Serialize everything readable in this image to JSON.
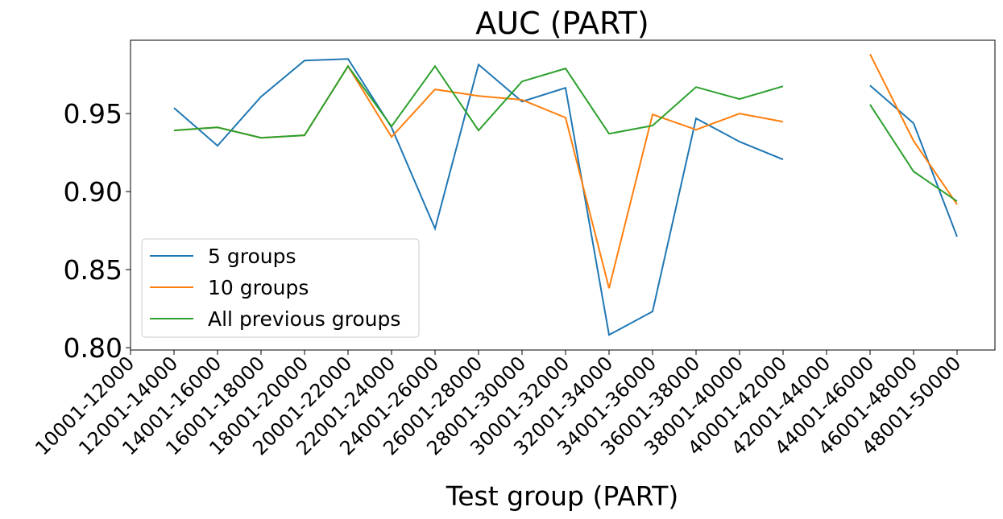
{
  "chart_data": {
    "type": "line",
    "title": "AUC (PART)",
    "xlabel": "Test group (PART)",
    "categories": [
      "10001-12000",
      "12001-14000",
      "14001-16000",
      "16001-18000",
      "18001-20000",
      "20001-22000",
      "22001-24000",
      "24001-26000",
      "26001-28000",
      "28001-30000",
      "30001-32000",
      "32001-34000",
      "34001-36000",
      "36001-38000",
      "38001-40000",
      "40001-42000",
      "42001-44000",
      "44001-46000",
      "46001-48000",
      "48001-50000"
    ],
    "series": [
      {
        "name": "5 groups",
        "color": "#1f77b4",
        "values": [
          null,
          0.9536,
          0.9294,
          0.9608,
          0.984,
          0.985,
          0.9412,
          0.8763,
          0.9814,
          0.9577,
          0.9665,
          0.8082,
          0.8232,
          0.9469,
          0.932,
          0.9206,
          null,
          0.968,
          0.9438,
          0.8711
        ]
      },
      {
        "name": "10 groups",
        "color": "#ff7f0e",
        "values": [
          null,
          0.9392,
          0.9412,
          0.9345,
          0.9361,
          0.9804,
          0.935,
          0.9655,
          0.9613,
          0.9588,
          0.9474,
          0.8381,
          0.9495,
          0.9397,
          0.95,
          0.9448,
          null,
          0.9881,
          0.9325,
          0.8918
        ]
      },
      {
        "name": "All previous groups",
        "color": "#2ca02c",
        "values": [
          null,
          0.9392,
          0.9412,
          0.9345,
          0.9361,
          0.9804,
          0.9418,
          0.9804,
          0.9392,
          0.9706,
          0.9789,
          0.9371,
          0.9423,
          0.967,
          0.9593,
          0.9675,
          null,
          0.9557,
          0.9129,
          0.8938
        ]
      }
    ],
    "ylim": [
      0.7985,
      0.997
    ],
    "yticks": [
      {
        "value": 0.8,
        "label": "0.80"
      },
      0.85,
      {
        "value": 0.9,
        "label": "0.90"
      },
      0.95
    ],
    "legend": "lower left"
  }
}
